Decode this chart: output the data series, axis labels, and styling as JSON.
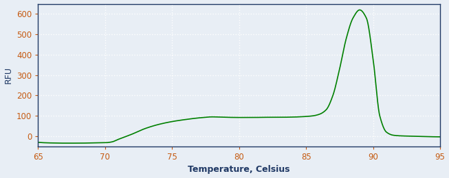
{
  "title": "",
  "xlabel": "Temperature, Celsius",
  "ylabel": "RFU",
  "xlim": [
    65,
    95
  ],
  "ylim": [
    -50,
    650
  ],
  "xticks": [
    65,
    70,
    75,
    80,
    85,
    90,
    95
  ],
  "yticks": [
    0,
    100,
    200,
    300,
    400,
    500,
    600
  ],
  "line_color": "#008000",
  "bg_color": "#e8eef5",
  "plot_bg_color": "#e8eef5",
  "grid_color": "#ffffff",
  "spine_color": "#1f3864",
  "tick_label_color": "#c55a11",
  "xlabel_color": "#1f3864",
  "ylabel_color": "#1f3864",
  "figsize": [
    6.53,
    2.6
  ],
  "dpi": 100,
  "curve_x": [
    65.0,
    65.5,
    66.0,
    67.0,
    68.0,
    69.0,
    70.0,
    70.5,
    71.0,
    72.0,
    73.0,
    74.0,
    75.0,
    76.0,
    77.0,
    78.0,
    79.0,
    80.0,
    81.0,
    82.0,
    83.0,
    84.0,
    85.0,
    85.5,
    86.0,
    86.5,
    87.0,
    87.5,
    88.0,
    88.5,
    89.0,
    89.5,
    90.0,
    90.5,
    91.0,
    91.5,
    92.0,
    93.0,
    94.0,
    95.0
  ],
  "curve_y": [
    -30,
    -32,
    -33,
    -34,
    -34,
    -33,
    -32,
    -28,
    -15,
    10,
    38,
    58,
    72,
    82,
    90,
    95,
    93,
    92,
    92,
    93,
    93,
    94,
    97,
    100,
    108,
    130,
    200,
    330,
    480,
    580,
    620,
    580,
    380,
    100,
    20,
    5,
    2,
    0,
    -2,
    -3
  ]
}
